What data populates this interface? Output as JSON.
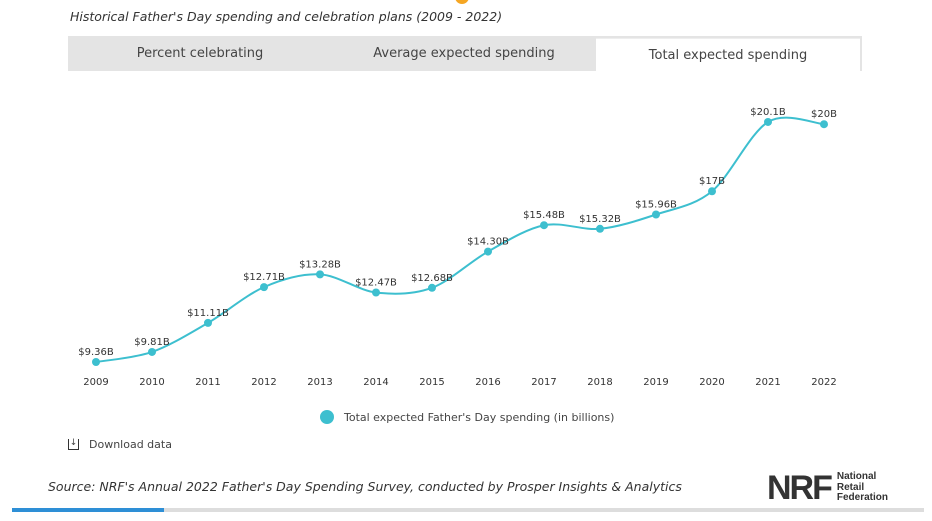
{
  "subtitle": "Historical Father's Day spending and celebration plans (2009 - 2022)",
  "tabs": [
    {
      "label": "Percent celebrating"
    },
    {
      "label": "Average expected spending"
    },
    {
      "label": "Total expected spending",
      "active": true
    }
  ],
  "chart_data": {
    "type": "line",
    "title": "Total expected spending",
    "x": [
      "2009",
      "2010",
      "2011",
      "2012",
      "2013",
      "2014",
      "2015",
      "2016",
      "2017",
      "2018",
      "2019",
      "2020",
      "2021",
      "2022"
    ],
    "series": [
      {
        "name": "Total expected Father's Day spending (in billions)",
        "values": [
          9.36,
          9.81,
          11.11,
          12.71,
          13.28,
          12.47,
          12.68,
          14.3,
          15.48,
          15.32,
          15.96,
          17,
          20.1,
          20
        ],
        "labels": [
          "$9.36B",
          "$9.81B",
          "$11.11B",
          "$12.71B",
          "$13.28B",
          "$12.47B",
          "$12.68B",
          "$14.30B",
          "$15.48B",
          "$15.32B",
          "$15.96B",
          "$17B",
          "$20.1B",
          "$20B"
        ]
      }
    ],
    "color": "#3dbfcf",
    "grid": false,
    "legend": "bottom"
  },
  "legend_label": "Total expected Father's Day spending (in billions)",
  "download_label": "Download data",
  "source": "Source: NRF's Annual 2022 Father's Day Spending Survey, conducted by Prosper Insights & Analytics",
  "logo": {
    "mark": "NRF",
    "line1": "National",
    "line2": "Retail",
    "line3": "Federation"
  }
}
